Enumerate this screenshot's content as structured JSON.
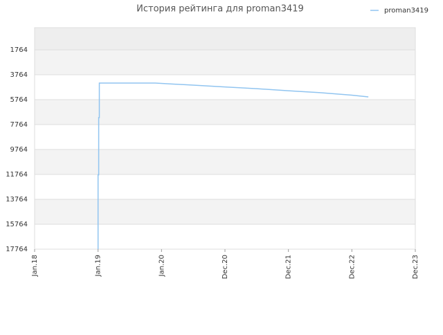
{
  "chart_data": {
    "type": "line",
    "title": "История рейтинга для proman3419",
    "x": [
      2019.0,
      2019.0,
      2019.01,
      2019.01,
      2019.02,
      2019.02,
      2019.9,
      2020.5,
      2021.0,
      2021.5,
      2022.0,
      2022.5,
      2023.0,
      2023.26
    ],
    "series": [
      {
        "name": "proman3419",
        "color": "#90c4f0",
        "values": [
          17764,
          11800,
          11800,
          7200,
          7200,
          4430,
          4430,
          4600,
          4740,
          4880,
          5050,
          5200,
          5400,
          5540
        ]
      }
    ],
    "xlim": [
      2018,
      2024
    ],
    "xticks": [
      {
        "value": 2018,
        "label": "Jan.18"
      },
      {
        "value": 2019,
        "label": "Jan.19"
      },
      {
        "value": 2020,
        "label": "Jan.20"
      },
      {
        "value": 2021,
        "label": "Dec.20"
      },
      {
        "value": 2022,
        "label": "Dec.21"
      },
      {
        "value": 2023,
        "label": "Dec.22"
      },
      {
        "value": 2024,
        "label": "Dec.23"
      }
    ],
    "ylim": [
      17764,
      -14
    ],
    "yticks": [
      1764,
      3764,
      5764,
      7764,
      9764,
      11764,
      13764,
      15764,
      17764
    ],
    "grid": true,
    "legend": "top-right"
  }
}
